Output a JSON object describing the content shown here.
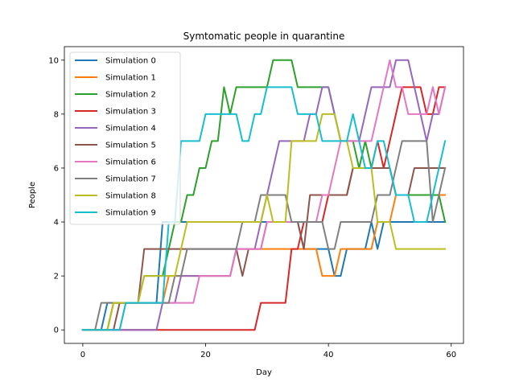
{
  "chart_data": {
    "type": "line",
    "title": "Symtomatic people in quarantine",
    "xlabel": "Day",
    "ylabel": "People",
    "xlim": [
      -3,
      62
    ],
    "ylim": [
      -0.5,
      10.5
    ],
    "xticks": [
      0,
      20,
      40,
      60
    ],
    "yticks": [
      0,
      2,
      4,
      6,
      8,
      10
    ],
    "grid": false,
    "legend_position": "top-left",
    "x": [
      0,
      1,
      2,
      3,
      4,
      5,
      6,
      7,
      8,
      9,
      10,
      11,
      12,
      13,
      14,
      15,
      16,
      17,
      18,
      19,
      20,
      21,
      22,
      23,
      24,
      25,
      26,
      27,
      28,
      29,
      30,
      31,
      32,
      33,
      34,
      35,
      36,
      37,
      38,
      39,
      40,
      41,
      42,
      43,
      44,
      45,
      46,
      47,
      48,
      49,
      50,
      51,
      52,
      53,
      54,
      55,
      56,
      57,
      58,
      59
    ],
    "series": [
      {
        "name": "Simulation 0",
        "color": "#1f77b4",
        "values": [
          0,
          0,
          0,
          0,
          1,
          1,
          1,
          1,
          1,
          1,
          1,
          1,
          1,
          4,
          4,
          4,
          4,
          4,
          4,
          4,
          4,
          4,
          4,
          4,
          4,
          4,
          4,
          4,
          4,
          4,
          4,
          4,
          4,
          4,
          4,
          4,
          3,
          3,
          3,
          3,
          3,
          2,
          2,
          3,
          3,
          3,
          3,
          4,
          3,
          4,
          4,
          4,
          4,
          4,
          4,
          4,
          4,
          4,
          4,
          4
        ]
      },
      {
        "name": "Simulation 1",
        "color": "#ff7f0e",
        "values": [
          0,
          0,
          0,
          0,
          0,
          1,
          1,
          1,
          1,
          1,
          1,
          1,
          1,
          1,
          2,
          2,
          2,
          2,
          2,
          2,
          2,
          2,
          2,
          2,
          2,
          3,
          3,
          3,
          3,
          3,
          3,
          3,
          3,
          3,
          3,
          3,
          3,
          3,
          3,
          2,
          2,
          2,
          3,
          3,
          3,
          3,
          3,
          3,
          4,
          4,
          4,
          5,
          5,
          5,
          5,
          5,
          5,
          5,
          5,
          5
        ]
      },
      {
        "name": "Simulation 2",
        "color": "#2ca02c",
        "values": [
          0,
          0,
          0,
          0,
          0,
          1,
          1,
          1,
          1,
          1,
          2,
          2,
          2,
          2,
          3,
          4,
          4,
          5,
          5,
          6,
          6,
          7,
          7,
          9,
          8,
          9,
          9,
          9,
          9,
          9,
          9,
          10,
          10,
          10,
          10,
          9,
          9,
          9,
          9,
          9,
          9,
          8,
          7,
          7,
          7,
          6,
          7,
          6,
          6,
          6,
          6,
          5,
          5,
          5,
          5,
          5,
          5,
          5,
          5,
          4
        ]
      },
      {
        "name": "Simulation 3",
        "color": "#d62728",
        "values": [
          0,
          0,
          0,
          0,
          0,
          0,
          0,
          0,
          0,
          0,
          0,
          0,
          0,
          0,
          0,
          0,
          0,
          0,
          0,
          0,
          0,
          0,
          0,
          0,
          0,
          0,
          0,
          0,
          0,
          1,
          1,
          1,
          1,
          1,
          3,
          3,
          4,
          4,
          4,
          4,
          5,
          5,
          5,
          5,
          6,
          6,
          6,
          6,
          7,
          6,
          7,
          8,
          9,
          9,
          9,
          9,
          8,
          8,
          9,
          9
        ]
      },
      {
        "name": "Simulation 4",
        "color": "#9467bd",
        "values": [
          0,
          0,
          0,
          0,
          0,
          0,
          0,
          0,
          0,
          0,
          0,
          0,
          0,
          1,
          1,
          1,
          2,
          2,
          2,
          2,
          2,
          2,
          2,
          2,
          2,
          3,
          3,
          3,
          3,
          4,
          5,
          6,
          7,
          7,
          7,
          7,
          7,
          8,
          8,
          9,
          9,
          8,
          7,
          7,
          7,
          7,
          8,
          9,
          9,
          9,
          9,
          10,
          10,
          10,
          9,
          8,
          7,
          8,
          8,
          9
        ]
      },
      {
        "name": "Simulation 5",
        "color": "#8c564b",
        "values": [
          0,
          0,
          0,
          0,
          0,
          0,
          1,
          1,
          1,
          1,
          3,
          3,
          3,
          3,
          3,
          3,
          3,
          3,
          3,
          3,
          3,
          3,
          3,
          3,
          3,
          3,
          2,
          3,
          3,
          3,
          4,
          4,
          4,
          4,
          4,
          4,
          3,
          5,
          5,
          5,
          5,
          5,
          5,
          5,
          6,
          6,
          6,
          6,
          6,
          6,
          6,
          5,
          5,
          5,
          6,
          6,
          6,
          6,
          6,
          6
        ]
      },
      {
        "name": "Simulation 6",
        "color": "#e377c2",
        "values": [
          0,
          0,
          0,
          0,
          0,
          0,
          0,
          1,
          1,
          1,
          1,
          1,
          1,
          1,
          1,
          1,
          1,
          1,
          1,
          2,
          2,
          2,
          2,
          2,
          2,
          3,
          3,
          3,
          3,
          3,
          4,
          4,
          4,
          4,
          4,
          4,
          4,
          4,
          4,
          5,
          5,
          6,
          7,
          7,
          7,
          7,
          7,
          7,
          8,
          9,
          10,
          9,
          9,
          8,
          8,
          8,
          8,
          9,
          8,
          9
        ]
      },
      {
        "name": "Simulation 7",
        "color": "#7f7f7f",
        "values": [
          0,
          0,
          0,
          1,
          1,
          1,
          1,
          1,
          1,
          1,
          1,
          1,
          1,
          1,
          1,
          2,
          2,
          3,
          3,
          3,
          3,
          3,
          3,
          3,
          3,
          3,
          4,
          4,
          4,
          5,
          5,
          5,
          5,
          5,
          4,
          4,
          4,
          4,
          4,
          4,
          3,
          3,
          4,
          4,
          4,
          4,
          4,
          4,
          5,
          5,
          5,
          6,
          7,
          7,
          7,
          7,
          7,
          4,
          5,
          6
        ]
      },
      {
        "name": "Simulation 8",
        "color": "#bcbd22",
        "values": [
          0,
          0,
          0,
          0,
          0,
          1,
          1,
          1,
          1,
          1,
          2,
          2,
          2,
          2,
          2,
          2,
          3,
          4,
          4,
          4,
          4,
          4,
          4,
          4,
          4,
          4,
          4,
          4,
          4,
          4,
          5,
          4,
          4,
          4,
          7,
          7,
          7,
          7,
          7,
          8,
          8,
          8,
          7,
          7,
          6,
          6,
          6,
          6,
          4,
          4,
          4,
          3,
          3,
          3,
          3,
          3,
          3,
          3,
          3,
          3
        ]
      },
      {
        "name": "Simulation 9",
        "color": "#17becf",
        "values": [
          0,
          0,
          0,
          0,
          0,
          0,
          0,
          1,
          1,
          1,
          1,
          1,
          1,
          1,
          4,
          4,
          7,
          7,
          7,
          7,
          8,
          8,
          8,
          8,
          8,
          8,
          7,
          7,
          8,
          8,
          9,
          9,
          9,
          9,
          9,
          8,
          8,
          8,
          8,
          7,
          7,
          7,
          7,
          7,
          8,
          7,
          6,
          6,
          7,
          7,
          6,
          5,
          5,
          5,
          4,
          4,
          4,
          5,
          6,
          7
        ]
      }
    ]
  }
}
